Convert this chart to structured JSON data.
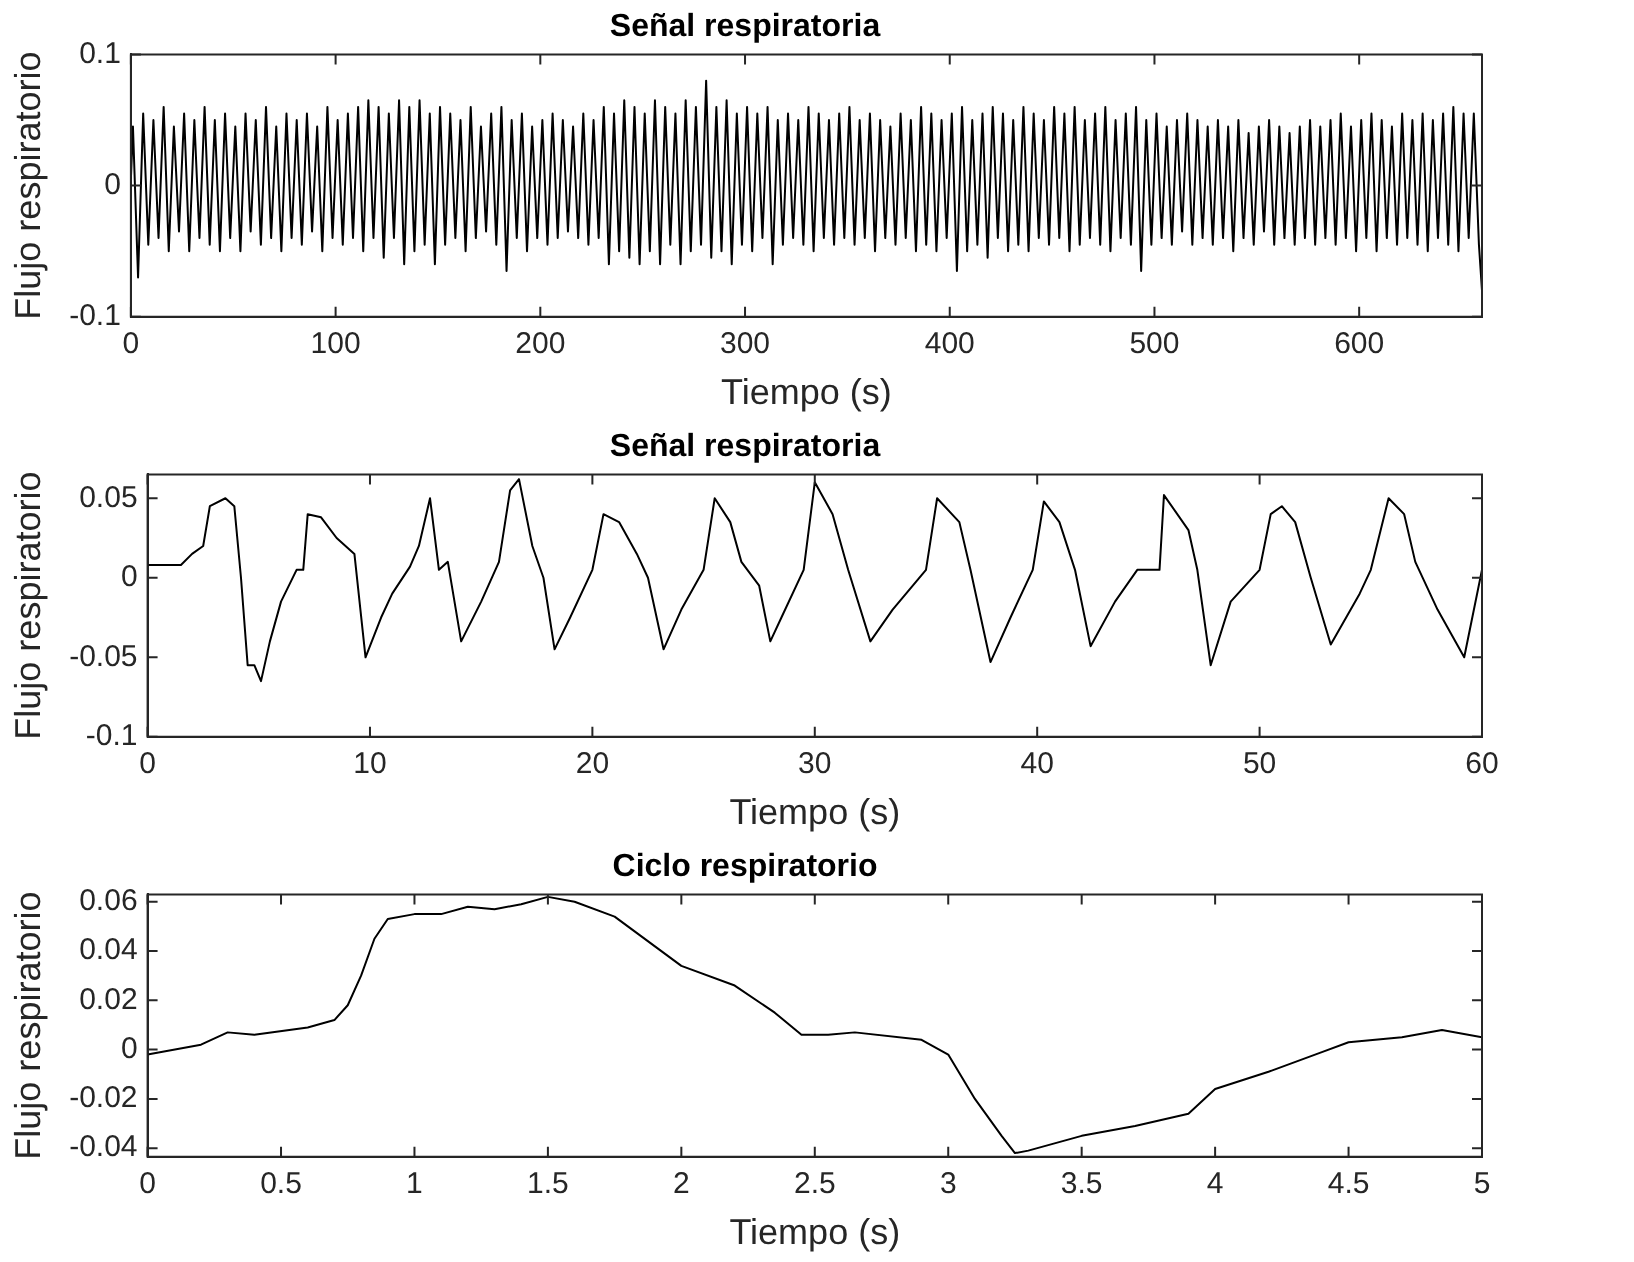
{
  "chart_data": [
    {
      "type": "line",
      "title": "Señal respiratoria",
      "xlabel": "Tiempo (s)",
      "ylabel": "Flujo respiratorio",
      "xlim": [
        0,
        660
      ],
      "xticks": [
        0,
        100,
        200,
        300,
        400,
        500,
        600
      ],
      "ylim": [
        -0.1,
        0.1
      ],
      "yticks": [
        -0.1,
        0,
        0.1
      ],
      "series": [
        {
          "color": "#000000",
          "x": [
            0,
            1,
            3.5,
            6,
            8.5,
            11,
            13.5,
            16,
            18.5,
            21,
            23.5,
            26,
            28.5,
            31,
            33.5,
            36,
            38.5,
            41,
            43.5,
            46,
            48.5,
            51,
            53.5,
            56,
            58.5,
            61,
            63.5,
            66,
            68.5,
            71,
            73.5,
            76,
            78.5,
            81,
            83.5,
            86,
            88.5,
            91,
            93.5,
            96,
            98.5,
            101,
            103.5,
            106,
            108.5,
            111,
            113.5,
            116,
            118.5,
            121,
            123.5,
            126,
            128.5,
            131,
            133.5,
            136,
            138.5,
            141,
            143.5,
            146,
            148.5,
            151,
            153.5,
            156,
            158.5,
            161,
            163.5,
            166,
            168.5,
            171,
            173.5,
            176,
            178.5,
            181,
            183.5,
            186,
            188.5,
            191,
            193.5,
            196,
            198.5,
            201,
            203.5,
            206,
            208.5,
            211,
            213.5,
            216,
            218.5,
            221,
            223.5,
            226,
            228.5,
            231,
            233.5,
            236,
            238.5,
            241,
            243.5,
            246,
            248.5,
            251,
            253.5,
            256,
            258.5,
            261,
            263.5,
            266,
            268.5,
            271,
            273.5,
            276,
            278.5,
            281,
            283.5,
            286,
            288.5,
            291,
            293.5,
            296,
            298.5,
            301,
            303.5,
            306,
            308.5,
            311,
            313.5,
            316,
            318.5,
            321,
            323.5,
            326,
            328.5,
            331,
            333.5,
            336,
            338.5,
            341,
            343.5,
            346,
            348.5,
            351,
            353.5,
            356,
            358.5,
            361,
            363.5,
            366,
            368.5,
            371,
            373.5,
            376,
            378.5,
            381,
            383.5,
            386,
            388.5,
            391,
            393.5,
            396,
            398.5,
            401,
            403.5,
            406,
            408.5,
            411,
            413.5,
            416,
            418.5,
            421,
            423.5,
            426,
            428.5,
            431,
            433.5,
            436,
            438.5,
            441,
            443.5,
            446,
            448.5,
            451,
            453.5,
            456,
            458.5,
            461,
            463.5,
            466,
            468.5,
            471,
            473.5,
            476,
            478.5,
            481,
            483.5,
            486,
            488.5,
            491,
            493.5,
            496,
            498.5,
            501,
            503.5,
            506,
            508.5,
            511,
            513.5,
            516,
            518.5,
            521,
            523.5,
            526,
            528.5,
            531,
            533.5,
            536,
            538.5,
            541,
            543.5,
            546,
            548.5,
            551,
            553.5,
            556,
            558.5,
            561,
            563.5,
            566,
            568.5,
            571,
            573.5,
            576,
            578.5,
            581,
            583.5,
            586,
            588.5,
            591,
            593.5,
            596,
            598.5,
            601,
            603.5,
            606,
            608.5,
            611,
            613.5,
            616,
            618.5,
            621,
            623.5,
            626,
            628.5,
            631,
            633.5,
            636,
            638.5,
            641,
            643.5,
            646,
            648.5,
            651,
            653.5,
            656,
            658.5,
            660
          ],
          "values": [
            0.005,
            0.045,
            -0.07,
            0.055,
            -0.045,
            0.05,
            -0.04,
            0.06,
            -0.05,
            0.045,
            -0.035,
            0.055,
            -0.05,
            0.05,
            -0.04,
            0.06,
            -0.045,
            0.05,
            -0.05,
            0.055,
            -0.04,
            0.045,
            -0.05,
            0.055,
            -0.035,
            0.05,
            -0.045,
            0.06,
            -0.04,
            0.045,
            -0.05,
            0.055,
            -0.04,
            0.05,
            -0.045,
            0.055,
            -0.035,
            0.045,
            -0.05,
            0.06,
            -0.04,
            0.05,
            -0.045,
            0.055,
            -0.04,
            0.06,
            -0.05,
            0.065,
            -0.04,
            0.06,
            -0.055,
            0.055,
            -0.04,
            0.065,
            -0.06,
            0.06,
            -0.05,
            0.065,
            -0.045,
            0.055,
            -0.06,
            0.06,
            -0.045,
            0.055,
            -0.04,
            0.05,
            -0.05,
            0.06,
            -0.04,
            0.045,
            -0.035,
            0.055,
            -0.045,
            0.06,
            -0.065,
            0.05,
            -0.04,
            0.055,
            -0.05,
            0.045,
            -0.04,
            0.05,
            -0.045,
            0.055,
            -0.04,
            0.05,
            -0.035,
            0.045,
            -0.04,
            0.055,
            -0.045,
            0.05,
            -0.04,
            0.06,
            -0.06,
            0.055,
            -0.05,
            0.065,
            -0.055,
            0.06,
            -0.06,
            0.055,
            -0.05,
            0.065,
            -0.06,
            0.06,
            -0.045,
            0.055,
            -0.06,
            0.065,
            -0.05,
            0.06,
            -0.045,
            0.08,
            -0.055,
            0.06,
            -0.05,
            0.065,
            -0.06,
            0.055,
            -0.045,
            0.06,
            -0.05,
            0.055,
            -0.04,
            0.06,
            -0.06,
            0.05,
            -0.045,
            0.055,
            -0.04,
            0.05,
            -0.045,
            0.06,
            -0.05,
            0.055,
            -0.04,
            0.05,
            -0.045,
            0.055,
            -0.04,
            0.06,
            -0.045,
            0.05,
            -0.04,
            0.055,
            -0.05,
            0.05,
            -0.04,
            0.045,
            -0.045,
            0.055,
            -0.04,
            0.05,
            -0.05,
            0.06,
            -0.045,
            0.055,
            -0.05,
            0.05,
            -0.04,
            0.055,
            -0.065,
            0.06,
            -0.05,
            0.05,
            -0.045,
            0.055,
            -0.055,
            0.06,
            -0.04,
            0.055,
            -0.05,
            0.05,
            -0.045,
            0.06,
            -0.05,
            0.055,
            -0.04,
            0.05,
            -0.045,
            0.06,
            -0.04,
            0.055,
            -0.05,
            0.06,
            -0.045,
            0.05,
            -0.04,
            0.055,
            -0.045,
            0.06,
            -0.05,
            0.05,
            -0.04,
            0.055,
            -0.045,
            0.06,
            -0.065,
            0.05,
            -0.045,
            0.055,
            -0.04,
            0.045,
            -0.045,
            0.05,
            -0.035,
            0.055,
            -0.045,
            0.05,
            -0.04,
            0.045,
            -0.045,
            0.05,
            -0.04,
            0.045,
            -0.05,
            0.05,
            -0.04,
            0.04,
            -0.045,
            0.045,
            -0.035,
            0.05,
            -0.045,
            0.045,
            -0.04,
            0.04,
            -0.045,
            0.045,
            -0.04,
            0.05,
            -0.045,
            0.045,
            -0.04,
            0.05,
            -0.045,
            0.055,
            -0.04,
            0.045,
            -0.05,
            0.05,
            -0.04,
            0.055,
            -0.05,
            0.05,
            -0.04,
            0.045,
            -0.045,
            0.055,
            -0.04,
            0.05,
            -0.045,
            0.055,
            -0.05,
            0.05,
            -0.04,
            0.055,
            -0.045,
            0.06,
            -0.05,
            0.055,
            -0.04,
            0.055,
            -0.045,
            -0.08
          ]
        }
      ]
    },
    {
      "type": "line",
      "title": "Señal respiratoria",
      "xlabel": "Tiempo (s)",
      "ylabel": "Flujo respiratorio",
      "xlim": [
        0,
        60
      ],
      "xticks": [
        0,
        10,
        20,
        30,
        40,
        50,
        60
      ],
      "ylim": [
        -0.1,
        0.065
      ],
      "yticks": [
        -0.1,
        -0.05,
        0,
        0.05
      ],
      "series": [
        {
          "color": "#000000",
          "x": [
            0,
            1.5,
            2,
            2.5,
            2.8,
            3.5,
            3.9,
            4.2,
            4.5,
            4.8,
            5.1,
            5.5,
            6,
            6.7,
            7,
            7.2,
            7.8,
            8.5,
            9.3,
            9.8,
            10.5,
            11,
            11.8,
            12.2,
            12.7,
            13.1,
            13.5,
            14.1,
            15,
            15.8,
            16.3,
            16.7,
            17.3,
            17.8,
            18.3,
            19,
            20,
            20.5,
            21.2,
            22,
            22.5,
            23.2,
            24,
            25,
            25.5,
            26.2,
            26.7,
            27.5,
            28,
            28.5,
            29.5,
            30,
            30.8,
            31.5,
            32.5,
            33.5,
            35,
            35.5,
            36.5,
            37,
            37.9,
            38.8,
            39.8,
            40.3,
            41,
            41.7,
            42.4,
            43.5,
            44.5,
            45.5,
            45.7,
            46.8,
            47.2,
            47.8,
            48.7,
            50,
            50.5,
            51,
            51.6,
            52.3,
            53.2,
            54.5,
            55,
            55.8,
            56.5,
            57,
            58,
            59.2,
            60
          ],
          "values": [
            0.008,
            0.008,
            0.015,
            0.02,
            0.045,
            0.05,
            0.045,
            0,
            -0.055,
            -0.055,
            -0.065,
            -0.04,
            -0.015,
            0.005,
            0.005,
            0.04,
            0.038,
            0.025,
            0.015,
            -0.05,
            -0.025,
            -0.01,
            0.007,
            0.02,
            0.05,
            0.005,
            0.01,
            -0.04,
            -0.015,
            0.01,
            0.055,
            0.062,
            0.02,
            0,
            -0.045,
            -0.025,
            0.005,
            0.04,
            0.035,
            0.015,
            0,
            -0.045,
            -0.02,
            0.005,
            0.05,
            0.035,
            0.01,
            -0.005,
            -0.04,
            -0.025,
            0.005,
            0.06,
            0.04,
            0.005,
            -0.04,
            -0.02,
            0.005,
            0.05,
            0.035,
            0.005,
            -0.053,
            -0.025,
            0.005,
            0.048,
            0.035,
            0.005,
            -0.043,
            -0.015,
            0.005,
            0.005,
            0.052,
            0.03,
            0.005,
            -0.055,
            -0.015,
            0.005,
            0.04,
            0.045,
            0.035,
            0,
            -0.042,
            -0.01,
            0.005,
            0.05,
            0.04,
            0.01,
            -0.02,
            -0.05,
            0.005
          ]
        }
      ]
    },
    {
      "type": "line",
      "title": "Ciclo respiratorio",
      "xlabel": "Tiempo (s)",
      "ylabel": "Flujo respiratorio",
      "xlim": [
        0,
        5
      ],
      "xticks": [
        0,
        0.5,
        1,
        1.5,
        2,
        2.5,
        3,
        3.5,
        4,
        4.5,
        5
      ],
      "ylim": [
        -0.0435,
        0.063
      ],
      "yticks": [
        -0.04,
        -0.02,
        0,
        0.02,
        0.04,
        0.06
      ],
      "series": [
        {
          "color": "#000000",
          "x": [
            0,
            0.2,
            0.3,
            0.4,
            0.6,
            0.7,
            0.75,
            0.8,
            0.85,
            0.9,
            1,
            1.1,
            1.2,
            1.3,
            1.4,
            1.5,
            1.6,
            1.75,
            2,
            2.2,
            2.35,
            2.45,
            2.55,
            2.65,
            2.9,
            3,
            3.1,
            3.2,
            3.25,
            3.3,
            3.5,
            3.7,
            3.9,
            4,
            4.2,
            4.4,
            4.5,
            4.7,
            4.85,
            5
          ],
          "values": [
            -0.002,
            0.002,
            0.007,
            0.006,
            0.009,
            0.012,
            0.018,
            0.03,
            0.045,
            0.053,
            0.055,
            0.055,
            0.058,
            0.057,
            0.059,
            0.062,
            0.06,
            0.054,
            0.034,
            0.026,
            0.015,
            0.006,
            0.006,
            0.007,
            0.004,
            -0.002,
            -0.02,
            -0.035,
            -0.042,
            -0.041,
            -0.035,
            -0.031,
            -0.026,
            -0.016,
            -0.009,
            -0.001,
            0.003,
            0.005,
            0.008,
            0.005
          ]
        }
      ]
    }
  ]
}
